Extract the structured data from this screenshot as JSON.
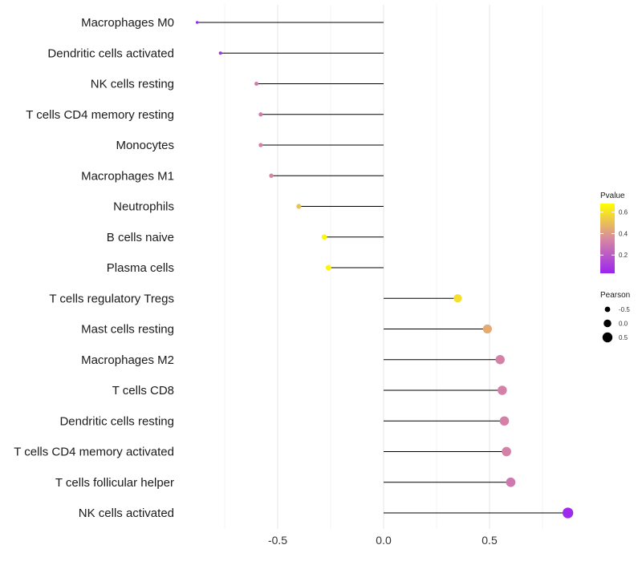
{
  "chart_data": {
    "type": "lollipop",
    "title": "",
    "xlabel": "",
    "ylabel": "",
    "xlim": [
      -1.0,
      0.9
    ],
    "x_ticks": [
      -0.5,
      0.0,
      0.5
    ],
    "x_tick_labels": [
      "-0.5",
      "0.0",
      "0.5"
    ],
    "grid": true,
    "categories": [
      "Macrophages M0",
      "Dendritic cells activated",
      "NK cells resting",
      "T cells CD4 memory resting",
      "Monocytes",
      "Macrophages M1",
      "Neutrophils",
      "B cells naive",
      "Plasma cells",
      "T cells regulatory  Tregs ",
      "Mast cells resting",
      "Macrophages M2",
      "T cells CD8",
      "Dendritic cells resting",
      "T cells CD4 memory activated",
      "T cells follicular helper",
      "NK cells activated"
    ],
    "pearson": [
      -0.88,
      -0.77,
      -0.6,
      -0.58,
      -0.58,
      -0.53,
      -0.4,
      -0.28,
      -0.26,
      0.35,
      0.49,
      0.55,
      0.56,
      0.57,
      0.58,
      0.6,
      0.87
    ],
    "pvalue": [
      0.01,
      0.05,
      0.3,
      0.3,
      0.32,
      0.33,
      0.52,
      0.68,
      0.67,
      0.6,
      0.45,
      0.32,
      0.32,
      0.32,
      0.32,
      0.29,
      0.02
    ],
    "color_legend": {
      "title": "Pvalue",
      "ticks": [
        0.2,
        0.4,
        0.6
      ],
      "tick_labels": [
        "0.2",
        "0.4",
        "0.6"
      ],
      "range": [
        0.0,
        0.7
      ],
      "low_color": "#9b24f0",
      "mid_color": "#d88aa0",
      "high_color": "#ffff00",
      "position": "right"
    },
    "size_legend": {
      "title": "Pearson",
      "values": [
        -0.5,
        0.0,
        0.5
      ],
      "labels": [
        "-0.5",
        "0.0",
        "0.5"
      ],
      "position": "right"
    }
  }
}
